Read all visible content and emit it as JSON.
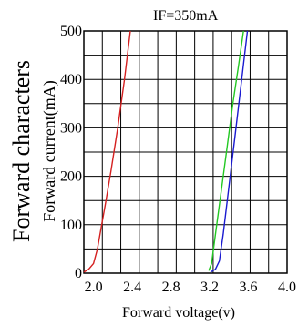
{
  "chart_data": {
    "type": "line",
    "annotation": "IF=350mA",
    "title": "Forward characters",
    "xlabel": "Forward voltage(v)",
    "ylabel": "Forward current(mA)",
    "xlim": [
      1.9,
      4.0
    ],
    "ylim": [
      0,
      500
    ],
    "grid": true,
    "x_ticks": [
      "2.0",
      "2.4",
      "2.8",
      "3.2",
      "3.6",
      "4.0"
    ],
    "x_tick_values": [
      2.0,
      2.4,
      2.8,
      3.2,
      3.6,
      4.0
    ],
    "y_ticks": [
      "0",
      "100",
      "200",
      "300",
      "400",
      "500"
    ],
    "y_tick_values": [
      0,
      100,
      200,
      300,
      400,
      500
    ],
    "series": [
      {
        "color": "#d42020",
        "points": [
          [
            1.9,
            2
          ],
          [
            1.95,
            8
          ],
          [
            2.0,
            20
          ],
          [
            2.04,
            50
          ],
          [
            2.08,
            95
          ],
          [
            2.12,
            140
          ],
          [
            2.18,
            210
          ],
          [
            2.25,
            300
          ],
          [
            2.32,
            400
          ],
          [
            2.38,
            500
          ]
        ]
      },
      {
        "color": "#22c822",
        "points": [
          [
            3.19,
            5
          ],
          [
            3.22,
            20
          ],
          [
            3.26,
            80
          ],
          [
            3.32,
            170
          ],
          [
            3.38,
            260
          ],
          [
            3.44,
            350
          ],
          [
            3.5,
            430
          ],
          [
            3.55,
            500
          ]
        ]
      },
      {
        "color": "#1a1ad0",
        "points": [
          [
            3.21,
            2
          ],
          [
            3.26,
            8
          ],
          [
            3.3,
            25
          ],
          [
            3.34,
            80
          ],
          [
            3.4,
            180
          ],
          [
            3.46,
            280
          ],
          [
            3.52,
            380
          ],
          [
            3.59,
            500
          ]
        ]
      }
    ]
  }
}
